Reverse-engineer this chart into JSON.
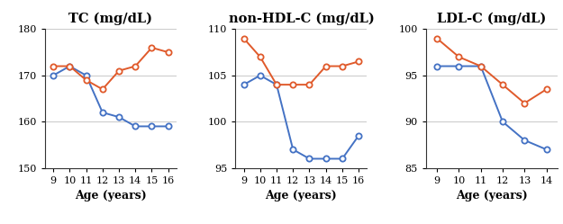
{
  "charts": [
    {
      "title": "TC (mg/dL)",
      "xlabel": "Age (years)",
      "ages": [
        9,
        10,
        11,
        12,
        13,
        14,
        15,
        16
      ],
      "blue": [
        170,
        172,
        170,
        162,
        161,
        159,
        159,
        159
      ],
      "red": [
        172,
        172,
        169,
        167,
        171,
        172,
        176,
        175
      ],
      "ylim": [
        150,
        180
      ],
      "yticks": [
        150,
        160,
        170,
        180
      ],
      "xticks": [
        9,
        10,
        11,
        12,
        13,
        14,
        15,
        16
      ]
    },
    {
      "title": "non-HDL-C (mg/dL)",
      "xlabel": "Age (years)",
      "ages": [
        9,
        10,
        11,
        12,
        13,
        14,
        15,
        16
      ],
      "blue": [
        104,
        105,
        104,
        97,
        96,
        96,
        96,
        98.5
      ],
      "red": [
        109,
        107,
        104,
        104,
        104,
        106,
        106,
        106.5
      ],
      "ylim": [
        95,
        110
      ],
      "yticks": [
        95,
        100,
        105,
        110
      ],
      "xticks": [
        9,
        10,
        11,
        12,
        13,
        14,
        15,
        16
      ]
    },
    {
      "title": "LDL-C (mg/dL)",
      "xlabel": "Age (years)",
      "ages": [
        9,
        10,
        11,
        12,
        13,
        14
      ],
      "blue": [
        96,
        96,
        96,
        90,
        88,
        87
      ],
      "red": [
        99,
        97,
        96,
        94,
        92,
        93.5
      ],
      "ylim": [
        85,
        100
      ],
      "yticks": [
        85,
        90,
        95,
        100
      ],
      "xticks": [
        9,
        10,
        11,
        12,
        13,
        14
      ]
    }
  ],
  "blue_color": "#4472c4",
  "red_color": "#e05a2b",
  "marker_size": 4.5,
  "line_width": 1.4,
  "title_fontsize": 10.5,
  "label_fontsize": 9,
  "tick_fontsize": 8,
  "background_color": "#ffffff",
  "grid_color": "#cccccc",
  "spine_color": "#333333"
}
